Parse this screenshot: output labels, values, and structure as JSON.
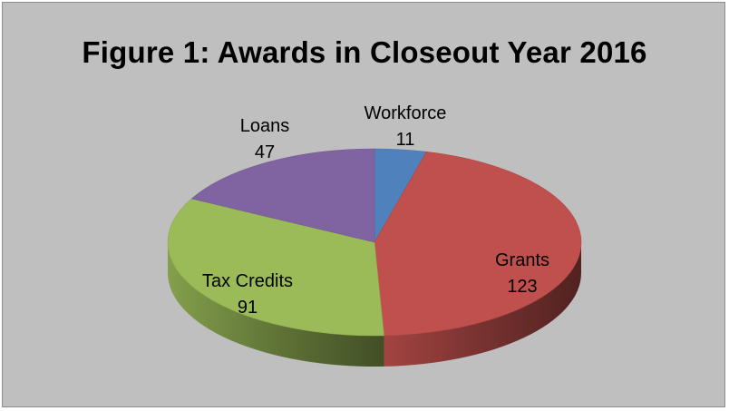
{
  "chart_data": {
    "type": "pie",
    "title": "Figure 1: Awards in Closeout Year 2016",
    "categories": [
      "Workforce",
      "Grants",
      "Tax Credits",
      "Loans"
    ],
    "values": [
      11,
      123,
      91,
      47
    ],
    "colors": {
      "Workforce": "#4f81bd",
      "Grants": "#c0504d",
      "Tax Credits": "#9bbb59",
      "Loans": "#8064a2"
    },
    "style": "3d",
    "legend": "none",
    "data_labels": "category and value"
  }
}
